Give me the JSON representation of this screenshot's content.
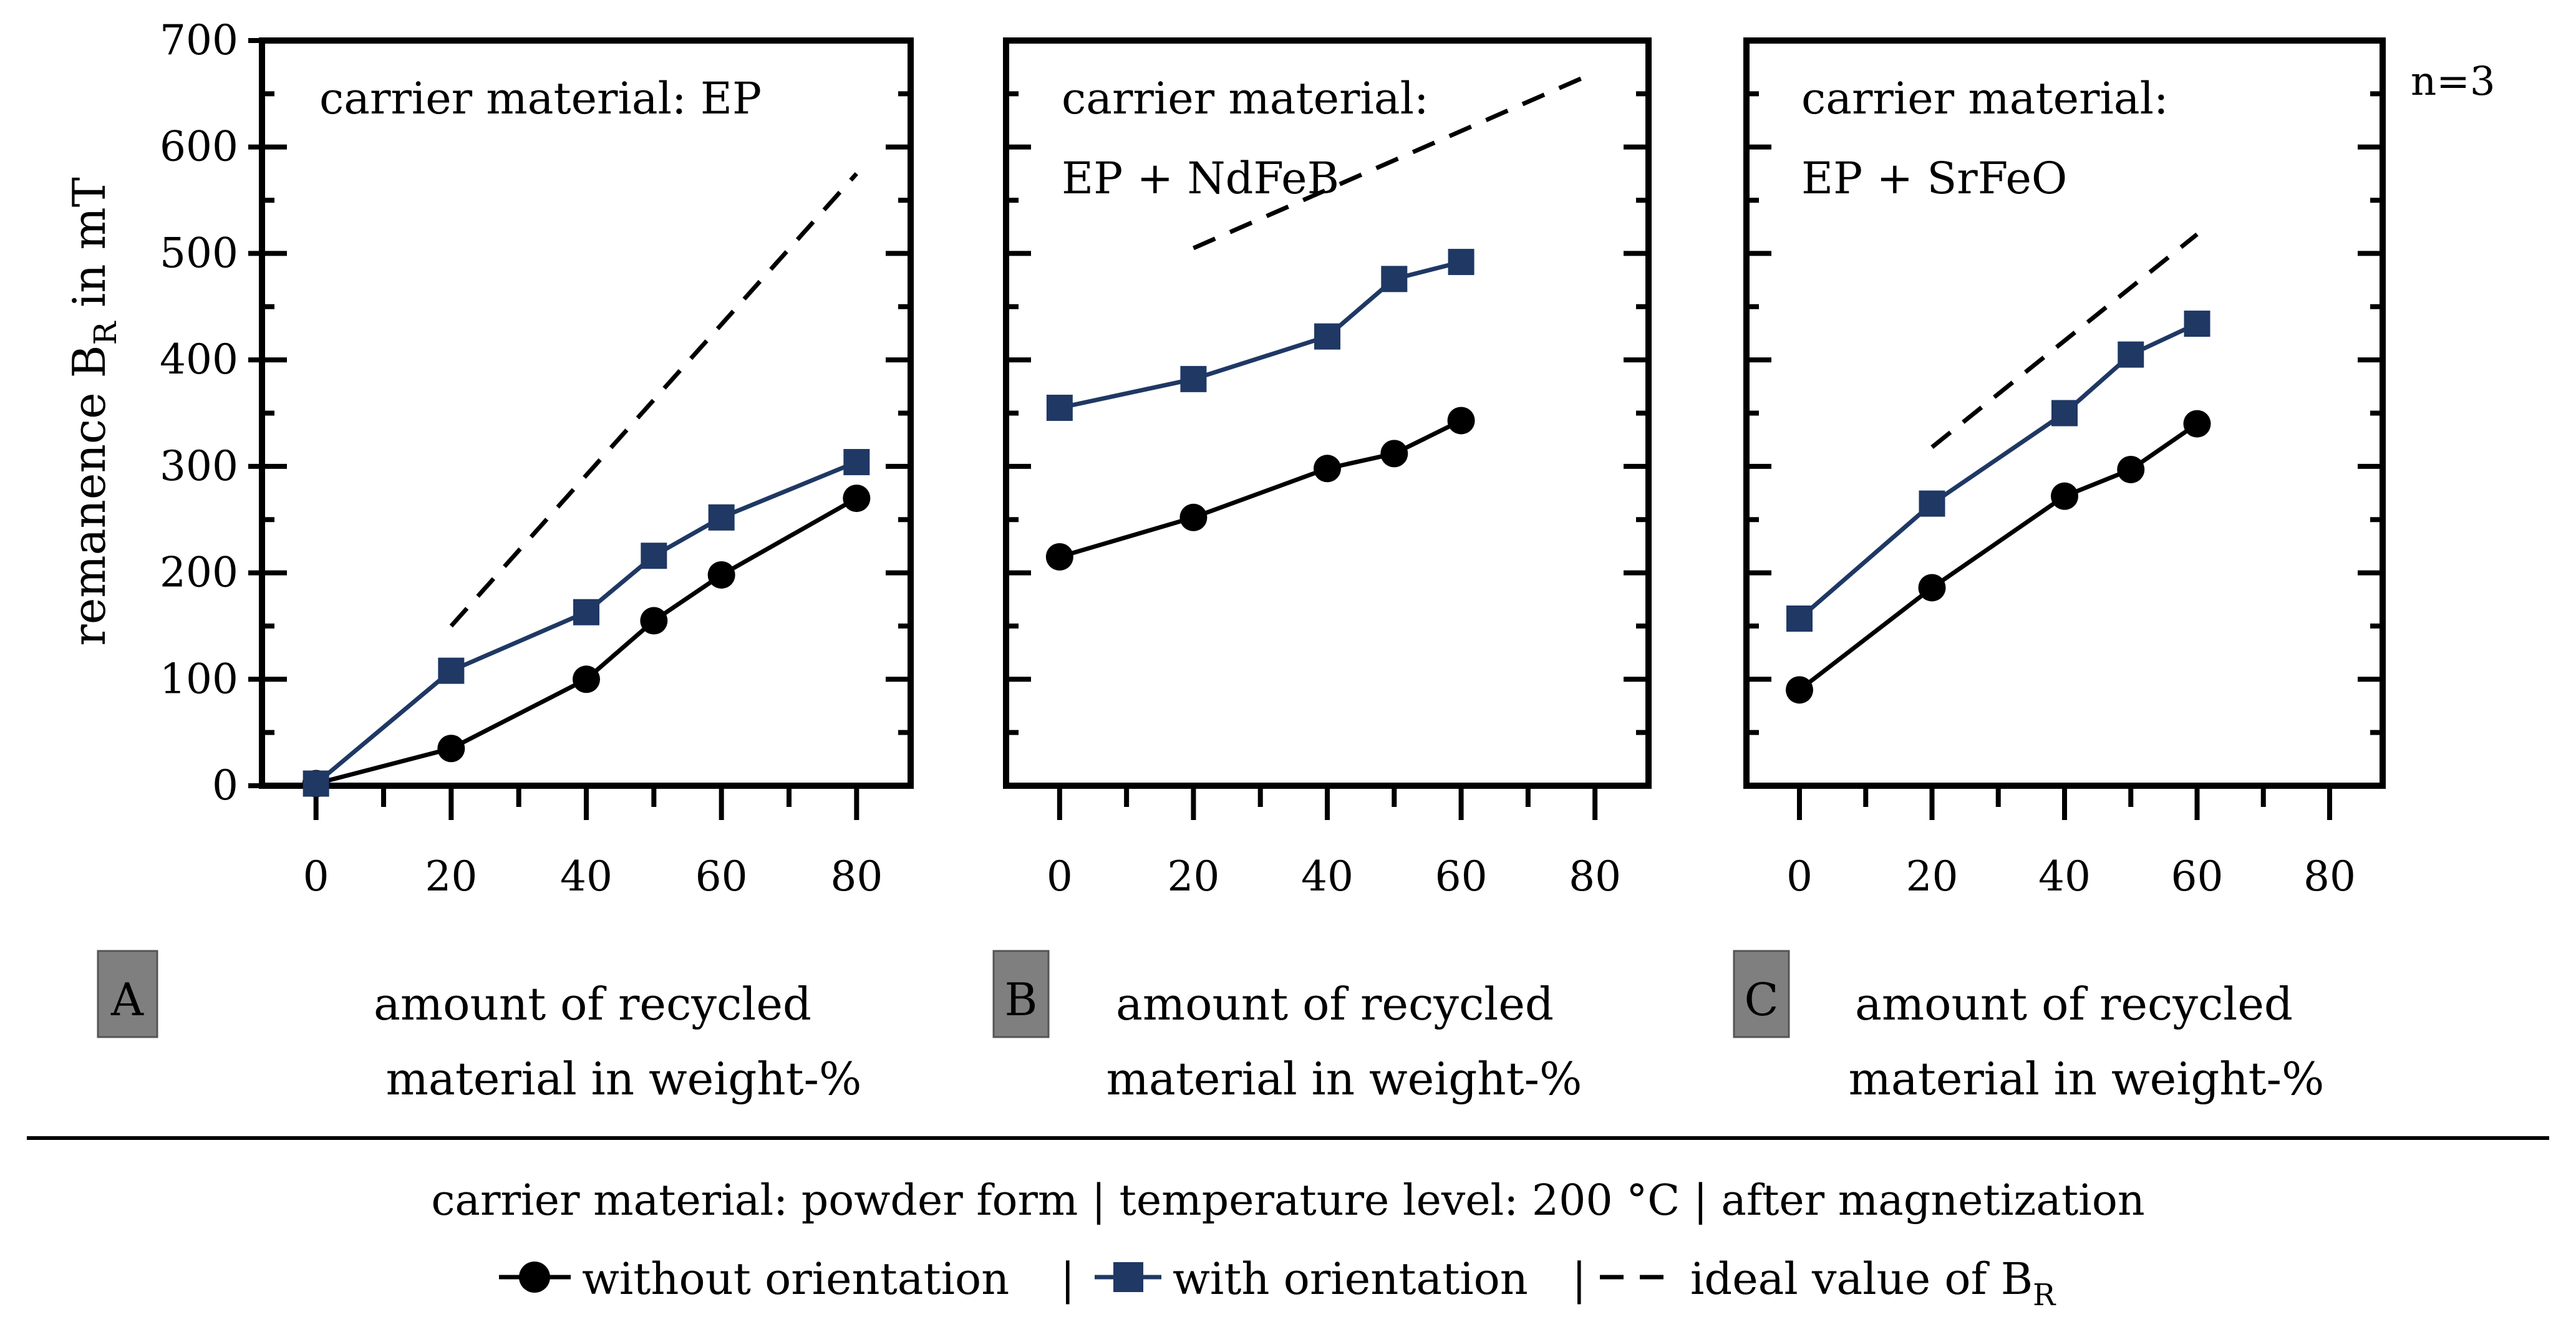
{
  "figure": {
    "y_axis_title_main": "remanence B",
    "y_axis_title_sub": "R",
    "y_axis_title_tail": " in mT",
    "y_ticks": [
      "0",
      "100",
      "200",
      "300",
      "400",
      "500",
      "600",
      "700"
    ],
    "sample_note": "n=3",
    "footer_line": "carrier material: powder form | temperature level: 200 °C | after magnetization",
    "legend": {
      "without": "without orientation",
      "sep1": "|",
      "with": "with orientation",
      "sep2": "|",
      "ideal_main": "ideal value of B",
      "ideal_sub": "R"
    },
    "colors": {
      "without": "#000000",
      "with": "#1f3864",
      "ideal": "#000000",
      "panel_label_bg": "#7f7f7f"
    }
  },
  "chart_data": [
    {
      "type": "line",
      "panel_label": "A",
      "annotation": [
        "carrier material: EP"
      ],
      "xlabel": [
        "amount of recycled",
        "material in weight-%"
      ],
      "ylabel": "remanence B_R in mT",
      "x_ticks": [
        "0",
        "20",
        "40",
        "60",
        "80"
      ],
      "xlim": [
        -8,
        88
      ],
      "ylim": [
        0,
        700
      ],
      "series": [
        {
          "name": "without orientation",
          "marker": "circle",
          "x": [
            0,
            20,
            40,
            50,
            60,
            80
          ],
          "y": [
            2,
            35,
            100,
            155,
            198,
            270
          ]
        },
        {
          "name": "with orientation",
          "marker": "square",
          "x": [
            0,
            20,
            40,
            50,
            60,
            80
          ],
          "y": [
            2,
            108,
            163,
            216,
            252,
            304
          ]
        },
        {
          "name": "ideal value of B_R",
          "style": "dashed",
          "x": [
            20,
            80
          ],
          "y": [
            150,
            575
          ]
        }
      ]
    },
    {
      "type": "line",
      "panel_label": "B",
      "annotation": [
        "carrier material:",
        "EP + NdFeB"
      ],
      "xlabel": [
        "amount of recycled",
        "material in weight-%"
      ],
      "ylabel": "remanence B_R in mT",
      "x_ticks": [
        "0",
        "20",
        "40",
        "60",
        "80"
      ],
      "xlim": [
        -8,
        88
      ],
      "ylim": [
        0,
        700
      ],
      "series": [
        {
          "name": "without orientation",
          "marker": "circle",
          "x": [
            0,
            20,
            40,
            50,
            60
          ],
          "y": [
            215,
            252,
            298,
            312,
            343
          ]
        },
        {
          "name": "with orientation",
          "marker": "square",
          "x": [
            0,
            20,
            40,
            50,
            60
          ],
          "y": [
            355,
            382,
            422,
            476,
            492
          ]
        },
        {
          "name": "ideal value of B_R",
          "style": "dashed",
          "x": [
            20,
            80
          ],
          "y": [
            505,
            670
          ]
        }
      ]
    },
    {
      "type": "line",
      "panel_label": "C",
      "annotation": [
        "carrier material:",
        "EP + SrFeO"
      ],
      "xlabel": [
        "amount of recycled",
        "material in weight-%"
      ],
      "ylabel": "remanence B_R in mT",
      "x_ticks": [
        "0",
        "20",
        "40",
        "60",
        "80"
      ],
      "xlim": [
        -8,
        88
      ],
      "ylim": [
        0,
        700
      ],
      "series": [
        {
          "name": "without orientation",
          "marker": "circle",
          "x": [
            0,
            20,
            40,
            50,
            60
          ],
          "y": [
            90,
            186,
            272,
            297,
            340
          ]
        },
        {
          "name": "with orientation",
          "marker": "square",
          "x": [
            0,
            20,
            40,
            50,
            60
          ],
          "y": [
            157,
            265,
            350,
            405,
            434
          ]
        },
        {
          "name": "ideal value of B_R",
          "style": "dashed",
          "x": [
            20,
            60
          ],
          "y": [
            318,
            518
          ]
        }
      ]
    }
  ]
}
